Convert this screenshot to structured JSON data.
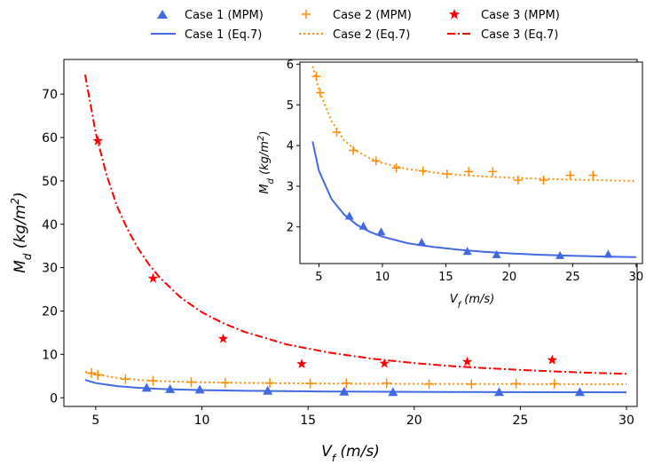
{
  "chart_data": [
    {
      "type": "scatter",
      "xlabel_main": "V",
      "xlabel_sub": "f",
      "xlabel_unit": " (m/s)",
      "ylabel_main": "M",
      "ylabel_sub": "d",
      "ylabel_unit": " (kg/m",
      "ylabel_sup": "2",
      "ylabel_close": ")",
      "xlim": [
        3.5,
        30.5
      ],
      "ylim": [
        -2,
        78
      ],
      "xticks": [
        5,
        10,
        15,
        20,
        25,
        30
      ],
      "yticks": [
        0,
        10,
        20,
        30,
        40,
        50,
        60,
        70
      ],
      "grid": false,
      "legend_position": "top-center",
      "series": [
        {
          "name": "Case 1 (MPM)",
          "kind": "points",
          "marker": "triangle",
          "color": "#4169e1",
          "x": [
            7.4,
            8.5,
            9.9,
            13.1,
            16.7,
            19.0,
            24.0,
            27.8
          ],
          "y": [
            2.3,
            2.0,
            1.9,
            1.6,
            1.4,
            1.3,
            1.3,
            1.3
          ]
        },
        {
          "name": "Case 2 (MPM)",
          "kind": "points",
          "marker": "plus",
          "color": "#ff8c00",
          "x": [
            4.8,
            5.1,
            6.4,
            7.7,
            9.5,
            11.1,
            13.2,
            15.1,
            16.8,
            18.7,
            20.7,
            22.7,
            24.8,
            26.6
          ],
          "y": [
            5.7,
            5.3,
            4.3,
            3.9,
            3.6,
            3.45,
            3.4,
            3.3,
            3.35,
            3.35,
            3.15,
            3.15,
            3.25,
            3.25
          ]
        },
        {
          "name": "Case 3 (MPM)",
          "kind": "points",
          "marker": "star",
          "color": "#ff0000",
          "x": [
            5.1,
            7.7,
            11.0,
            14.7,
            18.6,
            22.5,
            26.5
          ],
          "y": [
            59.2,
            27.5,
            13.6,
            7.8,
            7.9,
            8.3,
            8.7
          ]
        },
        {
          "name": "Case 1 (Eq.7)",
          "kind": "line",
          "dash": "solid",
          "color": "#4169e1",
          "x": [
            4.5,
            5,
            6,
            7,
            8,
            9,
            10,
            12,
            14,
            16,
            18,
            20,
            22,
            25,
            28,
            30
          ],
          "y": [
            4.1,
            3.38,
            2.68,
            2.3,
            2.05,
            1.88,
            1.76,
            1.6,
            1.51,
            1.44,
            1.39,
            1.35,
            1.32,
            1.29,
            1.27,
            1.26
          ]
        },
        {
          "name": "Case 2 (Eq.7)",
          "kind": "line",
          "dash": "dotted",
          "color": "#ff8c00",
          "x": [
            4.5,
            5,
            6,
            7,
            8,
            9,
            10,
            12,
            14,
            16,
            18,
            20,
            22,
            25,
            28,
            30
          ],
          "y": [
            5.95,
            5.37,
            4.6,
            4.12,
            3.86,
            3.69,
            3.57,
            3.42,
            3.34,
            3.28,
            3.24,
            3.21,
            3.19,
            3.16,
            3.14,
            3.13
          ]
        },
        {
          "name": "Case 3 (Eq.7)",
          "kind": "line",
          "dash": "dashdot",
          "color": "#ff0000",
          "x": [
            4.5,
            5,
            5.5,
            6,
            6.5,
            7,
            7.5,
            8,
            9,
            10,
            11,
            12,
            14,
            16,
            18,
            20,
            22,
            25,
            28,
            30
          ],
          "y": [
            74.5,
            61.0,
            51.5,
            44.2,
            38.8,
            34.4,
            30.8,
            27.8,
            23.1,
            19.7,
            17.2,
            15.2,
            12.3,
            10.4,
            9.0,
            8.0,
            7.2,
            6.4,
            5.8,
            5.5
          ]
        }
      ]
    },
    {
      "type": "scatter",
      "xlabel_main": "V",
      "xlabel_sub": "f",
      "xlabel_unit": " (m/s)",
      "ylabel_main": "M",
      "ylabel_sub": "d",
      "ylabel_unit": " (kg/m",
      "ylabel_sup": "2",
      "ylabel_close": ")",
      "xlim": [
        3.5,
        30.5
      ],
      "ylim": [
        1.1,
        6.05
      ],
      "xticks": [
        5,
        10,
        15,
        20,
        25,
        30
      ],
      "yticks": [
        2,
        3,
        4,
        5,
        6
      ],
      "grid": false,
      "series": [
        {
          "name": "Case 1 (MPM)",
          "kind": "points",
          "marker": "triangle",
          "color": "#4169e1",
          "x": [
            7.4,
            8.5,
            9.9,
            13.1,
            16.7,
            19.0,
            24.0,
            27.8
          ],
          "y": [
            2.27,
            2.02,
            1.88,
            1.62,
            1.4,
            1.32,
            1.3,
            1.33
          ]
        },
        {
          "name": "Case 2 (MPM)",
          "kind": "points",
          "marker": "plus",
          "color": "#ff8c00",
          "x": [
            4.8,
            5.1,
            6.4,
            7.7,
            9.5,
            11.1,
            13.2,
            15.1,
            16.8,
            18.7,
            20.7,
            22.7,
            24.8,
            26.6
          ],
          "y": [
            5.7,
            5.3,
            4.33,
            3.88,
            3.62,
            3.45,
            3.38,
            3.3,
            3.36,
            3.36,
            3.15,
            3.15,
            3.27,
            3.27
          ]
        },
        {
          "name": "Case 1 (Eq.7)",
          "kind": "line",
          "dash": "solid",
          "color": "#4169e1",
          "x": [
            4.5,
            5,
            6,
            7,
            8,
            9,
            10,
            12,
            14,
            16,
            18,
            20,
            22,
            25,
            28,
            30
          ],
          "y": [
            4.1,
            3.38,
            2.68,
            2.3,
            2.05,
            1.88,
            1.76,
            1.6,
            1.51,
            1.44,
            1.39,
            1.35,
            1.32,
            1.29,
            1.27,
            1.26
          ]
        },
        {
          "name": "Case 2 (Eq.7)",
          "kind": "line",
          "dash": "dotted",
          "color": "#ff8c00",
          "x": [
            4.5,
            5,
            6,
            7,
            8,
            9,
            10,
            12,
            14,
            16,
            18,
            20,
            22,
            25,
            28,
            30
          ],
          "y": [
            5.95,
            5.37,
            4.6,
            4.12,
            3.86,
            3.69,
            3.57,
            3.42,
            3.34,
            3.28,
            3.24,
            3.21,
            3.19,
            3.16,
            3.14,
            3.13
          ]
        }
      ]
    }
  ]
}
